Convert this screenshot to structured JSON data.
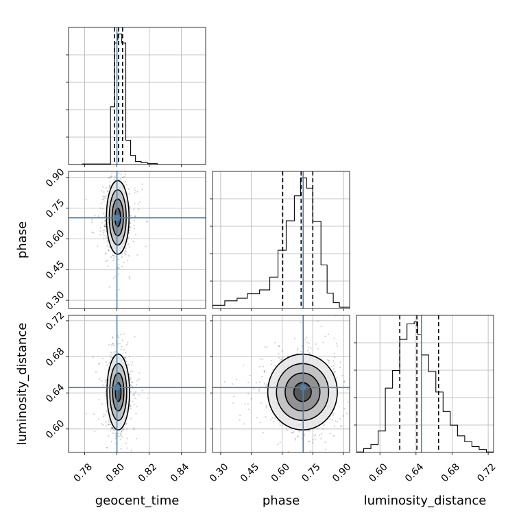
{
  "chart_data": {
    "type": "corner",
    "parameters": [
      {
        "name": "geocent_time",
        "label": "geocent_time",
        "range": [
          0.77,
          0.855
        ],
        "ticks": [
          "0.78",
          "0.80",
          "0.82",
          "0.84"
        ],
        "tick_values": [
          0.78,
          0.8,
          0.82,
          0.84
        ],
        "truth": 0.8,
        "quantiles": [
          0.7985,
          0.801,
          0.8035
        ],
        "histogram": {
          "edges": [
            0.7695,
            0.7785,
            0.796,
            0.7985,
            0.8,
            0.8005,
            0.803,
            0.8055,
            0.8085,
            0.8115,
            0.815,
            0.819,
            0.825,
            0.855
          ],
          "counts": [
            0,
            0.2,
            19.0,
            40.0,
            41.0,
            43.0,
            40.0,
            8.0,
            3.0,
            1.0,
            0.6,
            0.3,
            0
          ]
        }
      },
      {
        "name": "phase",
        "label": "phase",
        "range": [
          0.26,
          0.93
        ],
        "ticks": [
          "0.30",
          "0.45",
          "0.60",
          "0.75",
          "0.90"
        ],
        "tick_values": [
          0.3,
          0.45,
          0.6,
          0.75,
          0.9
        ],
        "truth": 0.703,
        "quantiles": [
          0.603,
          0.693,
          0.75
        ],
        "histogram": {
          "edges": [
            0.26,
            0.32,
            0.38,
            0.43,
            0.49,
            0.54,
            0.58,
            0.62,
            0.66,
            0.69,
            0.72,
            0.75,
            0.79,
            0.82,
            0.85,
            0.88,
            0.93
          ],
          "counts": [
            0.5,
            1.2,
            1.6,
            2.3,
            2.9,
            4.9,
            9.1,
            13.7,
            17.6,
            20.4,
            18.8,
            13.6,
            6.8,
            2.4,
            0.9,
            0.2
          ]
        }
      },
      {
        "name": "luminosity_distance",
        "label": "luminosity_distance",
        "range": [
          0.574,
          0.726
        ],
        "ticks": [
          "0.60",
          "0.64",
          "0.68",
          "0.72"
        ],
        "tick_values": [
          0.6,
          0.64,
          0.68,
          0.72
        ],
        "truth": 0.646,
        "quantiles": [
          0.622,
          0.641,
          0.665
        ],
        "histogram": {
          "edges": [
            0.574,
            0.582,
            0.59,
            0.598,
            0.606,
            0.614,
            0.622,
            0.63,
            0.638,
            0.642,
            0.646,
            0.654,
            0.662,
            0.67,
            0.678,
            0.686,
            0.694,
            0.702,
            0.71,
            0.718,
            0.726
          ],
          "counts": [
            0.05,
            0.4,
            0.8,
            2.2,
            6.6,
            8.4,
            11.6,
            13.2,
            13.4,
            12.1,
            10.0,
            8.3,
            6.2,
            4.2,
            2.8,
            1.7,
            1.1,
            0.6,
            0.3,
            0.05
          ]
        }
      }
    ],
    "joint": [
      {
        "x": "geocent_time",
        "y": "phase",
        "center": [
          0.8005,
          0.705
        ],
        "spread": [
          0.0035,
          0.09
        ],
        "contour_levels_sigma": [
          0.5,
          1.0,
          1.5,
          2.0
        ]
      },
      {
        "x": "geocent_time",
        "y": "luminosity_distance",
        "center": [
          0.8008,
          0.641
        ],
        "spread": [
          0.0035,
          0.021
        ],
        "contour_levels_sigma": [
          0.5,
          1.0,
          1.5,
          2.0
        ]
      },
      {
        "x": "phase",
        "y": "luminosity_distance",
        "center": [
          0.7,
          0.641
        ],
        "spread": [
          0.085,
          0.021
        ],
        "contour_levels_sigma": [
          0.5,
          1.0,
          1.5,
          2.0
        ]
      }
    ],
    "truth_color": "#4682b4",
    "grid": true,
    "title": ""
  }
}
